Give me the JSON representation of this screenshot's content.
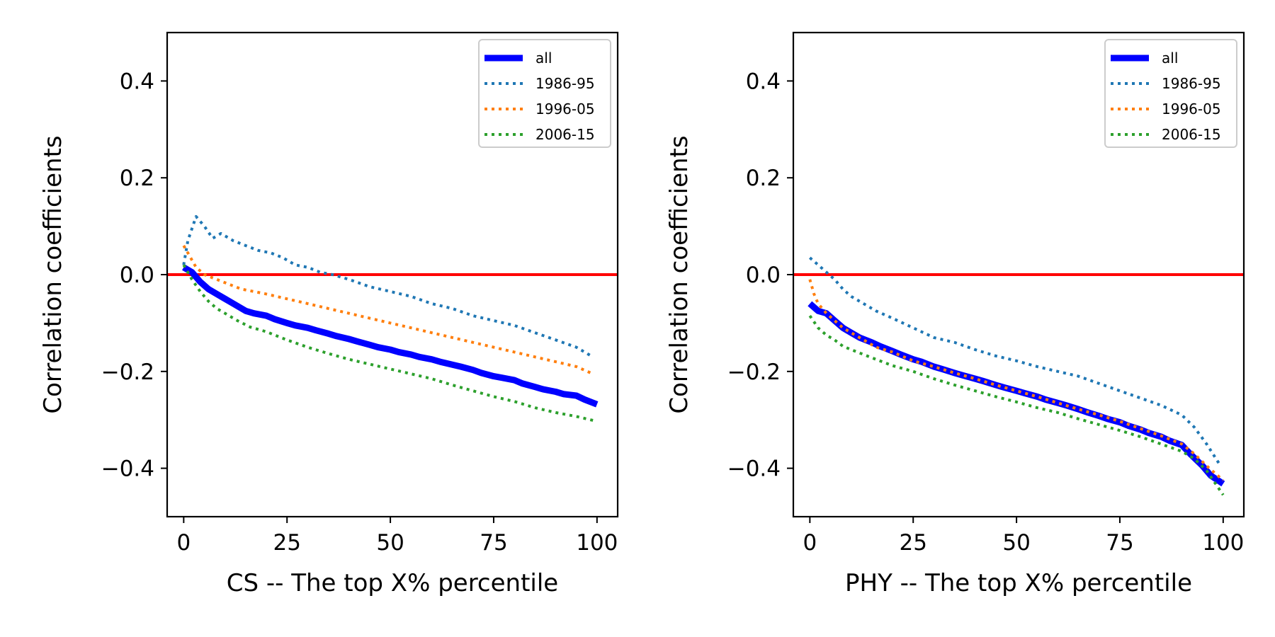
{
  "chart_data": [
    {
      "type": "line",
      "xlabel": "CS -- The top X% percentile",
      "ylabel": "Correlation coefficients",
      "xlim": [
        -4,
        105
      ],
      "ylim": [
        -0.5,
        0.5
      ],
      "xticks": [
        0,
        25,
        50,
        75,
        100
      ],
      "xtick_labels": [
        "0",
        "25",
        "50",
        "75",
        "100"
      ],
      "yticks": [
        -0.4,
        -0.2,
        0.0,
        0.2,
        0.4
      ],
      "ytick_labels": [
        "−0.4",
        "−0.2",
        "0.0",
        "0.2",
        "0.4"
      ],
      "grid": false,
      "legend_position": "top-right",
      "reference_line": {
        "y": 0.0,
        "color": "#ff0000"
      },
      "series": [
        {
          "name": "all",
          "color": "#0000ff",
          "style": "solid",
          "x": [
            0,
            2,
            4,
            6,
            8,
            10,
            12,
            15,
            17,
            20,
            22,
            25,
            27,
            30,
            32,
            35,
            37,
            40,
            42,
            45,
            47,
            50,
            52,
            55,
            57,
            60,
            62,
            65,
            67,
            70,
            72,
            75,
            77,
            80,
            82,
            85,
            87,
            90,
            92,
            95,
            97,
            100
          ],
          "y": [
            0.015,
            0.005,
            -0.015,
            -0.03,
            -0.04,
            -0.05,
            -0.06,
            -0.075,
            -0.08,
            -0.085,
            -0.092,
            -0.1,
            -0.105,
            -0.11,
            -0.115,
            -0.122,
            -0.127,
            -0.133,
            -0.138,
            -0.145,
            -0.15,
            -0.155,
            -0.16,
            -0.165,
            -0.17,
            -0.175,
            -0.18,
            -0.186,
            -0.19,
            -0.197,
            -0.203,
            -0.21,
            -0.213,
            -0.218,
            -0.225,
            -0.232,
            -0.237,
            -0.242,
            -0.247,
            -0.25,
            -0.258,
            -0.268
          ]
        },
        {
          "name": "1986-95",
          "color": "#1f77b4",
          "style": "dotted",
          "x": [
            0,
            1,
            3,
            5,
            7,
            9,
            12,
            15,
            18,
            21,
            24,
            27,
            30,
            33,
            36,
            40,
            45,
            50,
            55,
            60,
            65,
            70,
            75,
            80,
            85,
            90,
            95,
            99
          ],
          "y": [
            0.02,
            0.07,
            0.12,
            0.1,
            0.075,
            0.085,
            0.07,
            0.06,
            0.05,
            0.045,
            0.035,
            0.02,
            0.015,
            0.005,
            0.0,
            -0.01,
            -0.025,
            -0.035,
            -0.045,
            -0.06,
            -0.07,
            -0.085,
            -0.095,
            -0.105,
            -0.12,
            -0.135,
            -0.15,
            -0.17
          ]
        },
        {
          "name": "1996-05",
          "color": "#ff7f0e",
          "style": "dotted",
          "x": [
            0,
            1,
            3,
            5,
            8,
            11,
            14,
            17,
            20,
            25,
            30,
            35,
            40,
            45,
            50,
            55,
            60,
            65,
            70,
            75,
            80,
            85,
            90,
            95,
            99
          ],
          "y": [
            0.06,
            0.045,
            0.015,
            0.0,
            -0.01,
            -0.02,
            -0.03,
            -0.035,
            -0.04,
            -0.05,
            -0.06,
            -0.07,
            -0.08,
            -0.09,
            -0.1,
            -0.11,
            -0.12,
            -0.13,
            -0.14,
            -0.15,
            -0.16,
            -0.17,
            -0.18,
            -0.19,
            -0.205
          ]
        },
        {
          "name": "2006-15",
          "color": "#2ca02c",
          "style": "dotted",
          "x": [
            0,
            2,
            4,
            6,
            8,
            10,
            13,
            16,
            20,
            25,
            30,
            35,
            40,
            45,
            50,
            55,
            60,
            65,
            70,
            75,
            80,
            85,
            90,
            95,
            100
          ],
          "y": [
            0.02,
            -0.01,
            -0.035,
            -0.055,
            -0.07,
            -0.08,
            -0.095,
            -0.108,
            -0.118,
            -0.135,
            -0.15,
            -0.163,
            -0.175,
            -0.185,
            -0.195,
            -0.205,
            -0.215,
            -0.228,
            -0.24,
            -0.252,
            -0.262,
            -0.275,
            -0.285,
            -0.293,
            -0.303
          ]
        }
      ]
    },
    {
      "type": "line",
      "xlabel": "PHY -- The top X% percentile",
      "ylabel": "Correlation coefficients",
      "xlim": [
        -4,
        105
      ],
      "ylim": [
        -0.5,
        0.5
      ],
      "xticks": [
        0,
        25,
        50,
        75,
        100
      ],
      "xtick_labels": [
        "0",
        "25",
        "50",
        "75",
        "100"
      ],
      "yticks": [
        -0.4,
        -0.2,
        0.0,
        0.2,
        0.4
      ],
      "ytick_labels": [
        "−0.4",
        "−0.2",
        "0.0",
        "0.2",
        "0.4"
      ],
      "grid": false,
      "legend_position": "top-right",
      "reference_line": {
        "y": 0.0,
        "color": "#ff0000"
      },
      "series": [
        {
          "name": "all",
          "color": "#0000ff",
          "style": "solid",
          "x": [
            0,
            2,
            4,
            6,
            8,
            10,
            12,
            15,
            17,
            20,
            22,
            25,
            27,
            30,
            32,
            35,
            37,
            40,
            42,
            45,
            47,
            50,
            52,
            55,
            57,
            60,
            62,
            65,
            67,
            70,
            72,
            75,
            77,
            80,
            82,
            85,
            87,
            90,
            92,
            95,
            97,
            100
          ],
          "y": [
            -0.06,
            -0.075,
            -0.08,
            -0.095,
            -0.11,
            -0.12,
            -0.13,
            -0.14,
            -0.148,
            -0.158,
            -0.165,
            -0.175,
            -0.18,
            -0.19,
            -0.195,
            -0.203,
            -0.208,
            -0.215,
            -0.22,
            -0.228,
            -0.233,
            -0.24,
            -0.245,
            -0.252,
            -0.258,
            -0.265,
            -0.27,
            -0.278,
            -0.284,
            -0.292,
            -0.298,
            -0.305,
            -0.312,
            -0.32,
            -0.327,
            -0.335,
            -0.343,
            -0.352,
            -0.37,
            -0.395,
            -0.415,
            -0.432
          ]
        },
        {
          "name": "1986-95",
          "color": "#1f77b4",
          "style": "dotted",
          "x": [
            0,
            2,
            4,
            6,
            8,
            10,
            13,
            16,
            20,
            25,
            30,
            35,
            40,
            45,
            50,
            55,
            60,
            65,
            70,
            75,
            80,
            85,
            90,
            93,
            96,
            99
          ],
          "y": [
            0.035,
            0.02,
            0.005,
            -0.01,
            -0.03,
            -0.045,
            -0.06,
            -0.075,
            -0.09,
            -0.11,
            -0.13,
            -0.14,
            -0.155,
            -0.168,
            -0.178,
            -0.19,
            -0.2,
            -0.21,
            -0.225,
            -0.24,
            -0.255,
            -0.27,
            -0.29,
            -0.315,
            -0.35,
            -0.39
          ]
        },
        {
          "name": "1996-05",
          "color": "#ff7f0e",
          "style": "dotted",
          "x": [
            0,
            1,
            2,
            4,
            6,
            8,
            10,
            13,
            16,
            20,
            25,
            30,
            35,
            40,
            45,
            50,
            55,
            60,
            65,
            70,
            75,
            80,
            85,
            90,
            93,
            96,
            100
          ],
          "y": [
            -0.01,
            -0.04,
            -0.06,
            -0.08,
            -0.095,
            -0.11,
            -0.12,
            -0.135,
            -0.15,
            -0.16,
            -0.178,
            -0.19,
            -0.203,
            -0.215,
            -0.228,
            -0.24,
            -0.252,
            -0.265,
            -0.278,
            -0.29,
            -0.303,
            -0.318,
            -0.333,
            -0.35,
            -0.37,
            -0.395,
            -0.425
          ]
        },
        {
          "name": "2006-15",
          "color": "#2ca02c",
          "style": "dotted",
          "x": [
            0,
            2,
            4,
            6,
            8,
            10,
            13,
            16,
            20,
            25,
            30,
            35,
            40,
            45,
            50,
            55,
            60,
            65,
            70,
            75,
            80,
            85,
            90,
            93,
            96,
            100
          ],
          "y": [
            -0.085,
            -0.11,
            -0.125,
            -0.135,
            -0.148,
            -0.155,
            -0.165,
            -0.175,
            -0.188,
            -0.2,
            -0.215,
            -0.228,
            -0.24,
            -0.252,
            -0.263,
            -0.275,
            -0.285,
            -0.298,
            -0.31,
            -0.322,
            -0.335,
            -0.35,
            -0.365,
            -0.38,
            -0.405,
            -0.455
          ]
        }
      ]
    }
  ]
}
